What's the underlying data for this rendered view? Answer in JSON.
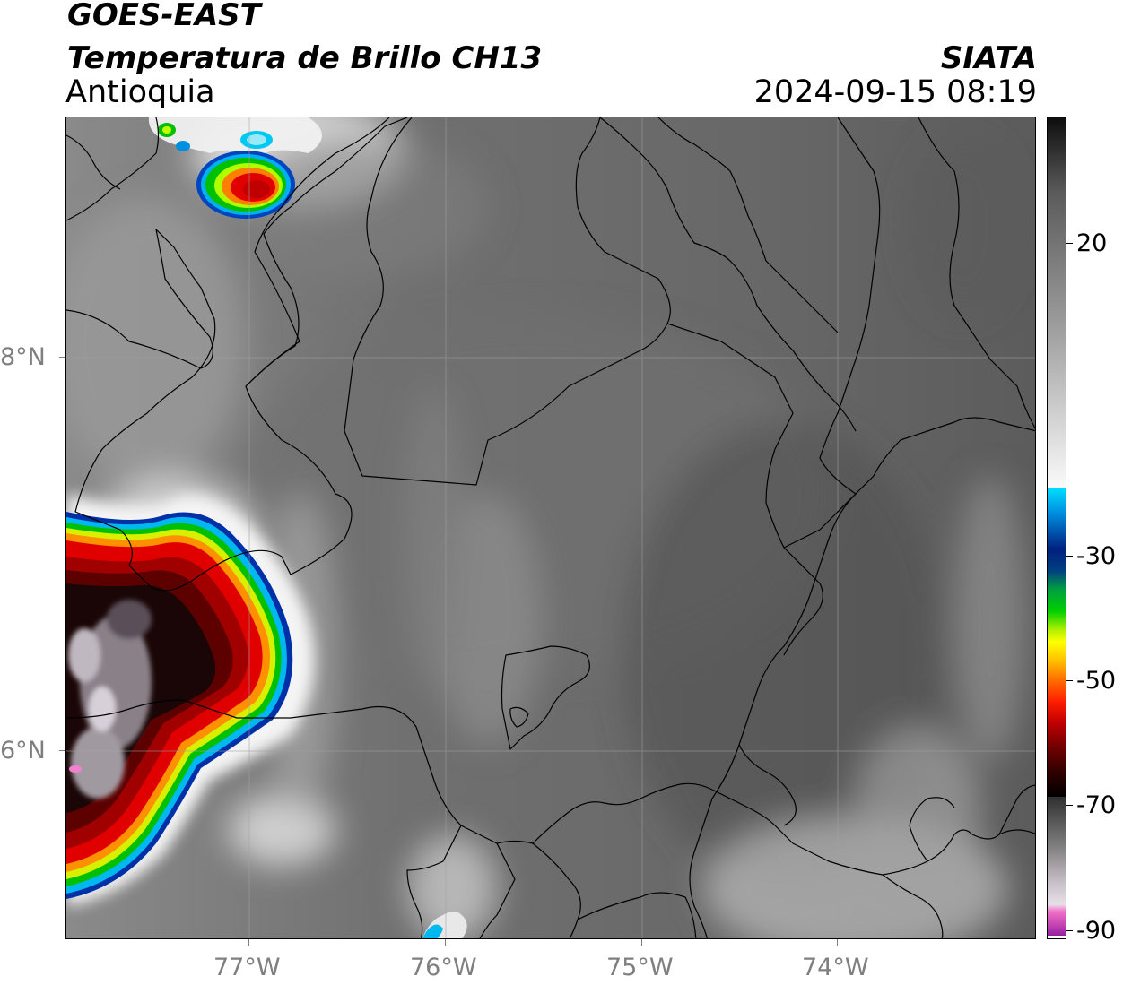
{
  "header": {
    "satellite": "GOES-EAST",
    "product": "Temperatura de Brillo CH13",
    "region": "Antioquia",
    "agency": "SIATA",
    "datetime": "2024-09-15 08:19"
  },
  "map": {
    "lon_ticks": [
      "77°W",
      "76°W",
      "75°W",
      "74°W"
    ],
    "lat_ticks": [
      "8°N",
      "6°N"
    ],
    "gridlines": true,
    "background_color": "#6e6e6e",
    "border_color": "#000000"
  },
  "colorbar": {
    "tick_labels": [
      "20",
      "-30",
      "-50",
      "-70",
      "-90"
    ],
    "palette": {
      "warm_gray_top": "#111111",
      "mid_gray": "#b0b0b0",
      "light": "#f5f5f5",
      "cyan": "#00d8ff",
      "blue": "#0030a0",
      "green": "#00c000",
      "yellow": "#ffff00",
      "orange": "#ff8000",
      "red": "#e00000",
      "dark_red": "#600000",
      "black": "#000000",
      "light_gray": "#d0c8d0",
      "pink": "#f060c0",
      "purple": "#a020a0"
    }
  }
}
